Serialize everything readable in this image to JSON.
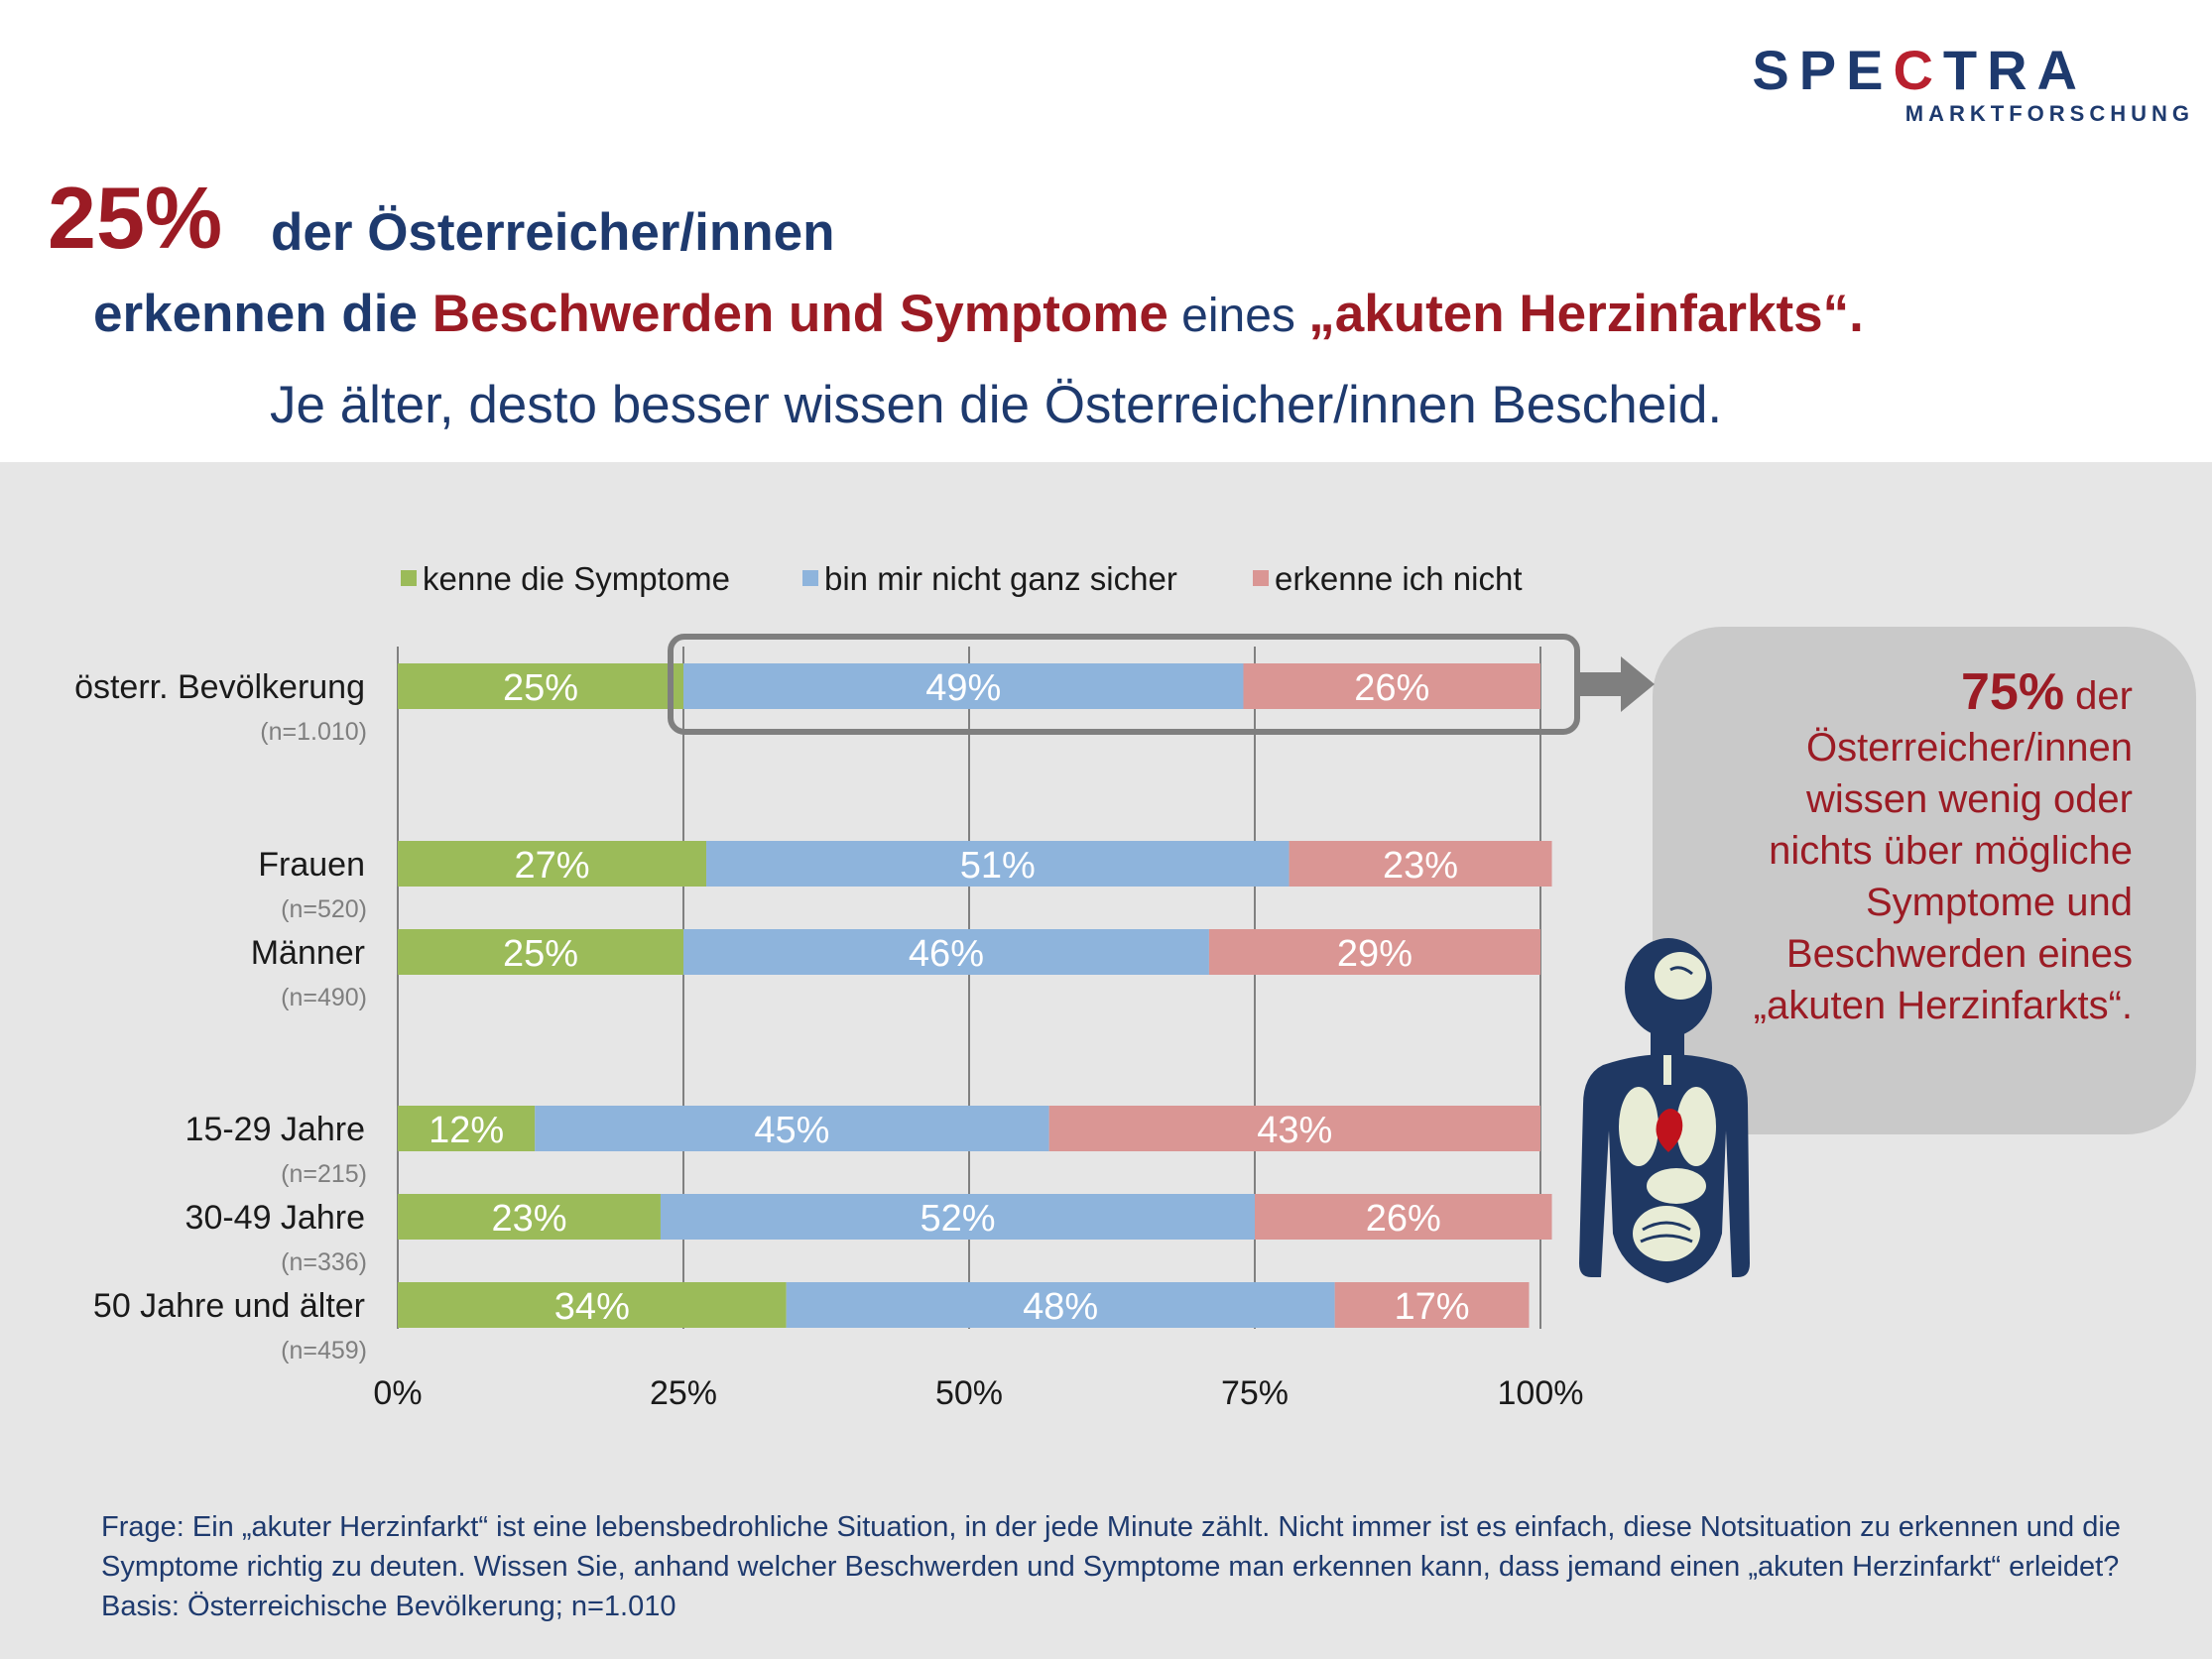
{
  "logo": {
    "name_part1": "SPE",
    "name_c": "C",
    "name_part2": "TRA",
    "sub": "MARKTFORSCHUNG"
  },
  "headline": {
    "big_pct": "25%",
    "line1": "der Österreicher/innen",
    "line2_a": "erkennen die ",
    "line2_b": "Beschwerden und Symptome",
    "line2_c": " eines ",
    "line2_d": "„akuten Herzinfarkts“.",
    "line3": "Je älter, desto besser wissen die Österreicher/innen Bescheid."
  },
  "colors": {
    "green": "#9bbb59",
    "blue": "#8eb4dc",
    "red": "#da9694",
    "navy": "#1e3a6e",
    "darkred": "#9b1b24"
  },
  "chart_data": {
    "type": "bar",
    "orientation": "horizontal",
    "stacked": true,
    "categories": [
      "österr. Bevölkerung",
      "Frauen",
      "Männer",
      "15-29 Jahre",
      "30-49 Jahre",
      "50 Jahre und älter"
    ],
    "sample_sizes": [
      "(n=1.010)",
      "(n=520)",
      "(n=490)",
      "(n=215)",
      "(n=336)",
      "(n=459)"
    ],
    "series": [
      {
        "name": "kenne die Symptome",
        "color": "#9bbb59",
        "values": [
          25,
          27,
          25,
          12,
          23,
          34
        ]
      },
      {
        "name": "bin mir nicht ganz sicher",
        "color": "#8eb4dc",
        "values": [
          49,
          51,
          46,
          45,
          52,
          48
        ]
      },
      {
        "name": "erkenne ich nicht",
        "color": "#da9694",
        "values": [
          26,
          23,
          29,
          43,
          26,
          17
        ]
      }
    ],
    "xlim": [
      0,
      100
    ],
    "x_ticks": [
      "0%",
      "25%",
      "50%",
      "75%",
      "100%"
    ],
    "grid": true,
    "legend_position": "top",
    "value_suffix": "%"
  },
  "callout": {
    "pct": "75%",
    "lines": [
      " der",
      "Österreicher/innen",
      "wissen wenig oder",
      "nichts über mögliche",
      "Symptome und",
      "Beschwerden eines",
      "„akuten Herzinfarkts“."
    ]
  },
  "footnote": "Frage: Ein „akuter Herzinfarkt“ ist eine lebensbedrohliche Situation, in der jede Minute zählt. Nicht immer ist es einfach, diese Notsituation zu erkennen und die Symptome richtig zu deuten. Wissen Sie, anhand welcher Beschwerden und Symptome man erkennen kann, dass jemand einen „akuten Herzinfarkt“ erleidet? Basis: Österreichische Bevölkerung; n=1.010"
}
